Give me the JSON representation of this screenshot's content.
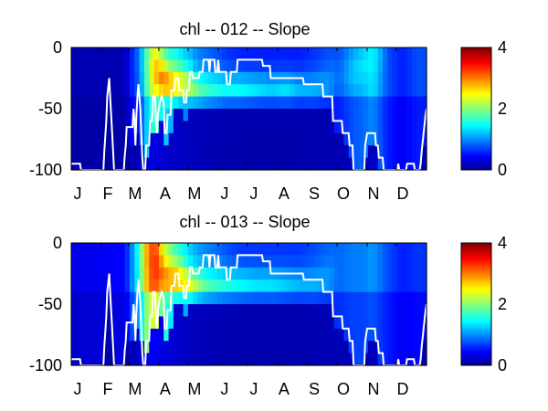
{
  "chart_data": [
    {
      "type": "heatmap",
      "title": "chl -- 012 -- Slope",
      "xlabel": "",
      "ylabel": "",
      "x_tick_labels": [
        "J",
        "F",
        "M",
        "A",
        "M",
        "J",
        "J",
        "A",
        "S",
        "O",
        "N",
        "D"
      ],
      "y_ticks": [
        0,
        -50,
        -100
      ],
      "ylim": [
        -100,
        0
      ],
      "depth_bins": [
        0,
        -10,
        -20,
        -30,
        -40,
        -50,
        -60,
        -70,
        -80,
        -90
      ],
      "colorbar": {
        "ticks": [
          0,
          2,
          4
        ],
        "range": [
          0,
          4
        ],
        "colormap": "jet"
      },
      "day_knots": [
        0,
        55,
        62,
        70,
        78,
        85,
        92,
        100,
        108,
        115,
        122,
        130,
        140,
        150,
        160,
        175,
        190,
        205,
        220,
        235,
        250,
        265,
        275,
        290,
        300,
        310,
        320,
        325,
        340,
        355,
        365
      ],
      "surface_chl": [
        0.2,
        0.2,
        0.6,
        0.9,
        1.8,
        2.4,
        2.0,
        1.6,
        1.5,
        1.3,
        1.2,
        1.0,
        0.9,
        0.8,
        0.7,
        0.6,
        0.6,
        0.6,
        0.6,
        0.6,
        0.7,
        0.8,
        0.8,
        1.1,
        1.2,
        1.4,
        1.0,
        0.8,
        0.6,
        0.8,
        0.8
      ],
      "peak_chl": [
        0.2,
        0.2,
        0.6,
        1.0,
        1.9,
        2.7,
        3.0,
        2.9,
        2.6,
        2.4,
        2.2,
        1.9,
        1.7,
        1.6,
        1.5,
        1.5,
        1.4,
        1.3,
        1.4,
        1.2,
        1.2,
        1.1,
        0.9,
        1.3,
        1.4,
        1.5,
        1.1,
        0.8,
        0.6,
        0.8,
        0.8
      ],
      "peak_depth": [
        -5,
        -5,
        -5,
        -10,
        -15,
        -20,
        -25,
        -30,
        -30,
        -30,
        -32,
        -35,
        -35,
        -35,
        -35,
        -35,
        -35,
        -35,
        -35,
        -35,
        -35,
        -30,
        -25,
        -20,
        -15,
        -10,
        -5,
        -5,
        -5,
        -5,
        -5
      ],
      "mixed_layer_depth": [
        [
          0,
          -95
        ],
        [
          9,
          -95
        ],
        [
          10,
          -100
        ],
        [
          33,
          -100
        ],
        [
          34,
          -85
        ],
        [
          36,
          -60
        ],
        [
          37,
          -40
        ],
        [
          39,
          -25
        ],
        [
          40,
          -40
        ],
        [
          42,
          -70
        ],
        [
          44,
          -100
        ],
        [
          54,
          -100
        ],
        [
          55,
          -88
        ],
        [
          56,
          -80
        ],
        [
          57,
          -65
        ],
        [
          63,
          -65
        ],
        [
          64,
          -50
        ],
        [
          65,
          -60
        ],
        [
          66,
          -80
        ],
        [
          67,
          -55
        ],
        [
          68,
          -40
        ],
        [
          69,
          -30
        ],
        [
          70,
          -40
        ],
        [
          71,
          -50
        ],
        [
          72,
          -70
        ],
        [
          73,
          -90
        ],
        [
          74,
          -100
        ],
        [
          76,
          -100
        ],
        [
          77,
          -80
        ],
        [
          80,
          -80
        ],
        [
          81,
          -60
        ],
        [
          83,
          -60
        ],
        [
          84,
          -40
        ],
        [
          86,
          -40
        ],
        [
          87,
          -60
        ],
        [
          88,
          -70
        ],
        [
          89,
          -55
        ],
        [
          90,
          -50
        ],
        [
          91,
          -45
        ],
        [
          93,
          -40
        ],
        [
          95,
          -45
        ],
        [
          96,
          -70
        ],
        [
          98,
          -70
        ],
        [
          99,
          -55
        ],
        [
          102,
          -55
        ],
        [
          103,
          -35
        ],
        [
          106,
          -35
        ],
        [
          107,
          -25
        ],
        [
          110,
          -25
        ],
        [
          111,
          -35
        ],
        [
          115,
          -35
        ],
        [
          116,
          -45
        ],
        [
          118,
          -45
        ],
        [
          119,
          -35
        ],
        [
          121,
          -35
        ],
        [
          122,
          -20
        ],
        [
          124,
          -20
        ],
        [
          125,
          -25
        ],
        [
          131,
          -25
        ],
        [
          132,
          -20
        ],
        [
          135,
          -20
        ],
        [
          136,
          -10
        ],
        [
          141,
          -10
        ],
        [
          142,
          -20
        ],
        [
          143,
          -10
        ],
        [
          147,
          -10
        ],
        [
          148,
          -20
        ],
        [
          150,
          -20
        ],
        [
          151,
          -10
        ],
        [
          152,
          -20
        ],
        [
          159,
          -20
        ],
        [
          160,
          -30
        ],
        [
          163,
          -30
        ],
        [
          164,
          -20
        ],
        [
          170,
          -20
        ],
        [
          171,
          -10
        ],
        [
          196,
          -10
        ],
        [
          197,
          -15
        ],
        [
          204,
          -15
        ],
        [
          205,
          -25
        ],
        [
          238,
          -25
        ],
        [
          239,
          -30
        ],
        [
          258,
          -30
        ],
        [
          259,
          -40
        ],
        [
          268,
          -40
        ],
        [
          269,
          -60
        ],
        [
          278,
          -60
        ],
        [
          279,
          -70
        ],
        [
          285,
          -70
        ],
        [
          286,
          -80
        ],
        [
          289,
          -80
        ],
        [
          290,
          -100
        ],
        [
          301,
          -100
        ],
        [
          302,
          -80
        ],
        [
          304,
          -70
        ],
        [
          312,
          -70
        ],
        [
          313,
          -80
        ],
        [
          315,
          -80
        ],
        [
          316,
          -90
        ],
        [
          320,
          -90
        ],
        [
          321,
          -100
        ],
        [
          335,
          -100
        ],
        [
          336,
          -95
        ],
        [
          337,
          -100
        ],
        [
          344,
          -100
        ],
        [
          345,
          -95
        ],
        [
          352,
          -95
        ],
        [
          353,
          -100
        ],
        [
          358,
          -100
        ],
        [
          359,
          -95
        ],
        [
          360,
          -85
        ],
        [
          362,
          -70
        ],
        [
          364,
          -55
        ],
        [
          365,
          -50
        ]
      ]
    },
    {
      "type": "heatmap",
      "title": "chl -- 013 -- Slope",
      "xlabel": "",
      "ylabel": "",
      "x_tick_labels": [
        "J",
        "F",
        "M",
        "A",
        "M",
        "J",
        "J",
        "A",
        "S",
        "O",
        "N",
        "D"
      ],
      "y_ticks": [
        0,
        -50,
        -100
      ],
      "ylim": [
        -100,
        0
      ],
      "depth_bins": [
        0,
        -10,
        -20,
        -30,
        -40,
        -50,
        -60,
        -70,
        -80,
        -90
      ],
      "colorbar": {
        "ticks": [
          0,
          2,
          4
        ],
        "range": [
          0,
          4
        ],
        "colormap": "jet"
      },
      "day_knots": [
        0,
        55,
        62,
        70,
        78,
        85,
        92,
        100,
        108,
        115,
        122,
        130,
        140,
        150,
        160,
        175,
        190,
        205,
        220,
        235,
        250,
        265,
        275,
        290,
        300,
        310,
        320,
        325,
        340,
        355,
        365
      ],
      "surface_chl": [
        0.4,
        0.5,
        1.0,
        1.6,
        2.8,
        3.3,
        2.6,
        2.0,
        1.7,
        1.5,
        1.3,
        1.1,
        1.0,
        0.9,
        0.8,
        0.7,
        0.7,
        0.7,
        0.7,
        0.7,
        0.8,
        0.9,
        0.9,
        1.0,
        1.0,
        1.1,
        0.9,
        0.8,
        0.6,
        0.7,
        0.7
      ],
      "peak_chl": [
        0.4,
        0.5,
        1.0,
        1.7,
        2.9,
        3.4,
        3.1,
        2.9,
        2.8,
        2.6,
        2.4,
        2.1,
        1.8,
        1.7,
        1.6,
        1.5,
        1.4,
        1.4,
        1.3,
        1.2,
        1.2,
        1.1,
        0.9,
        1.0,
        1.0,
        1.1,
        0.9,
        0.8,
        0.6,
        0.7,
        0.7
      ],
      "peak_depth": [
        -5,
        -5,
        -5,
        -8,
        -12,
        -18,
        -25,
        -30,
        -30,
        -32,
        -35,
        -35,
        -35,
        -35,
        -35,
        -35,
        -35,
        -35,
        -35,
        -35,
        -35,
        -30,
        -25,
        -20,
        -15,
        -10,
        -5,
        -5,
        -5,
        -5,
        -5
      ],
      "mixed_layer_depth": [
        [
          0,
          -95
        ],
        [
          9,
          -95
        ],
        [
          10,
          -100
        ],
        [
          33,
          -100
        ],
        [
          34,
          -85
        ],
        [
          36,
          -60
        ],
        [
          37,
          -40
        ],
        [
          39,
          -25
        ],
        [
          40,
          -40
        ],
        [
          42,
          -70
        ],
        [
          44,
          -100
        ],
        [
          54,
          -100
        ],
        [
          55,
          -88
        ],
        [
          56,
          -80
        ],
        [
          57,
          -65
        ],
        [
          63,
          -65
        ],
        [
          64,
          -50
        ],
        [
          65,
          -60
        ],
        [
          66,
          -80
        ],
        [
          67,
          -55
        ],
        [
          68,
          -40
        ],
        [
          69,
          -30
        ],
        [
          70,
          -40
        ],
        [
          71,
          -50
        ],
        [
          72,
          -70
        ],
        [
          73,
          -90
        ],
        [
          74,
          -100
        ],
        [
          76,
          -100
        ],
        [
          77,
          -80
        ],
        [
          80,
          -80
        ],
        [
          81,
          -60
        ],
        [
          83,
          -60
        ],
        [
          84,
          -40
        ],
        [
          86,
          -40
        ],
        [
          87,
          -60
        ],
        [
          88,
          -70
        ],
        [
          89,
          -55
        ],
        [
          90,
          -50
        ],
        [
          91,
          -45
        ],
        [
          93,
          -40
        ],
        [
          95,
          -45
        ],
        [
          96,
          -70
        ],
        [
          98,
          -70
        ],
        [
          99,
          -55
        ],
        [
          102,
          -55
        ],
        [
          103,
          -35
        ],
        [
          106,
          -35
        ],
        [
          107,
          -25
        ],
        [
          110,
          -25
        ],
        [
          111,
          -35
        ],
        [
          115,
          -35
        ],
        [
          116,
          -45
        ],
        [
          118,
          -45
        ],
        [
          119,
          -35
        ],
        [
          121,
          -35
        ],
        [
          122,
          -20
        ],
        [
          124,
          -20
        ],
        [
          125,
          -25
        ],
        [
          131,
          -25
        ],
        [
          132,
          -20
        ],
        [
          135,
          -20
        ],
        [
          136,
          -10
        ],
        [
          141,
          -10
        ],
        [
          142,
          -20
        ],
        [
          143,
          -10
        ],
        [
          147,
          -10
        ],
        [
          148,
          -20
        ],
        [
          150,
          -20
        ],
        [
          151,
          -10
        ],
        [
          152,
          -20
        ],
        [
          159,
          -20
        ],
        [
          160,
          -30
        ],
        [
          163,
          -30
        ],
        [
          164,
          -20
        ],
        [
          170,
          -20
        ],
        [
          171,
          -10
        ],
        [
          196,
          -10
        ],
        [
          197,
          -15
        ],
        [
          204,
          -15
        ],
        [
          205,
          -25
        ],
        [
          238,
          -25
        ],
        [
          239,
          -30
        ],
        [
          258,
          -30
        ],
        [
          259,
          -40
        ],
        [
          268,
          -40
        ],
        [
          269,
          -60
        ],
        [
          278,
          -60
        ],
        [
          279,
          -70
        ],
        [
          285,
          -70
        ],
        [
          286,
          -80
        ],
        [
          289,
          -80
        ],
        [
          290,
          -100
        ],
        [
          301,
          -100
        ],
        [
          302,
          -80
        ],
        [
          304,
          -70
        ],
        [
          312,
          -70
        ],
        [
          313,
          -80
        ],
        [
          315,
          -80
        ],
        [
          316,
          -90
        ],
        [
          320,
          -90
        ],
        [
          321,
          -100
        ],
        [
          335,
          -100
        ],
        [
          336,
          -95
        ],
        [
          337,
          -100
        ],
        [
          344,
          -100
        ],
        [
          345,
          -95
        ],
        [
          352,
          -95
        ],
        [
          353,
          -100
        ],
        [
          358,
          -100
        ],
        [
          359,
          -95
        ],
        [
          360,
          -85
        ],
        [
          362,
          -70
        ],
        [
          364,
          -55
        ],
        [
          365,
          -50
        ]
      ]
    }
  ]
}
